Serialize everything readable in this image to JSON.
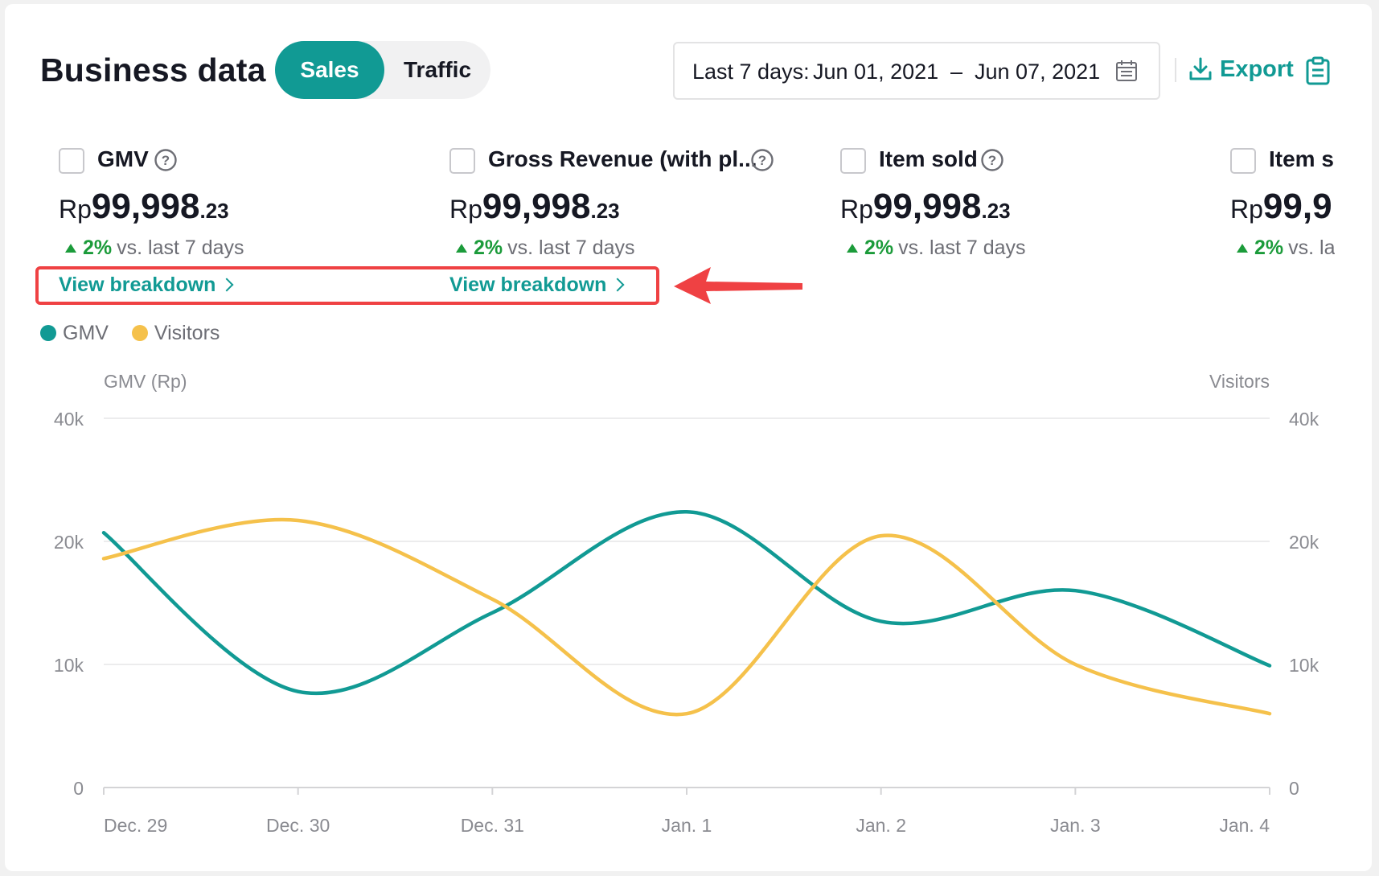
{
  "header": {
    "title": "Business data",
    "tabs": [
      {
        "label": "Sales",
        "active": true
      },
      {
        "label": "Traffic",
        "active": false
      }
    ],
    "date_range": {
      "prefix": "Last 7 days:",
      "start": "Jun 01, 2021",
      "separator": "–",
      "end": "Jun 07, 2021"
    },
    "export_label": "Export"
  },
  "metrics": [
    {
      "name": "GMV",
      "currency": "Rp",
      "value_int": "99,998",
      "value_dec": ".23",
      "change": "2%",
      "vs": "vs. last 7 days",
      "breakdown": "View breakdown"
    },
    {
      "name": "Gross Revenue (with pl...",
      "currency": "Rp",
      "value_int": "99,998",
      "value_dec": ".23",
      "change": "2%",
      "vs": "vs. last 7 days",
      "breakdown": "View breakdown"
    },
    {
      "name": "Item sold",
      "currency": "Rp",
      "value_int": "99,998",
      "value_dec": ".23",
      "change": "2%",
      "vs": "vs. last 7 days"
    },
    {
      "name": "Item s",
      "currency": "Rp",
      "value_int": "99,9",
      "value_dec": "",
      "change": "2%",
      "vs": "vs. la"
    }
  ],
  "legend": [
    {
      "label": "GMV",
      "color": "#119a94"
    },
    {
      "label": "Visitors",
      "color": "#f5c14b"
    }
  ],
  "chart_data": {
    "type": "line",
    "ylabel": "GMV (Rp)",
    "y2label": "Visitors",
    "x": [
      "Dec. 29",
      "Dec. 30",
      "Dec. 31",
      "Jan. 1",
      "Jan. 2",
      "Jan. 3",
      "Jan. 4"
    ],
    "y_ticks": [
      "0",
      "10k",
      "20k",
      "40k"
    ],
    "y2_ticks": [
      "0",
      "10k",
      "20k",
      "40k"
    ],
    "grid": true,
    "legend_position": "top-left",
    "series": [
      {
        "name": "GMV",
        "color": "#119a94",
        "values": [
          21400,
          7800,
          14200,
          24800,
          13500,
          16000,
          9900
        ]
      },
      {
        "name": "Visitors",
        "color": "#f5c14b",
        "values": [
          18600,
          23400,
          15300,
          6000,
          20900,
          10000,
          6000
        ]
      }
    ]
  }
}
